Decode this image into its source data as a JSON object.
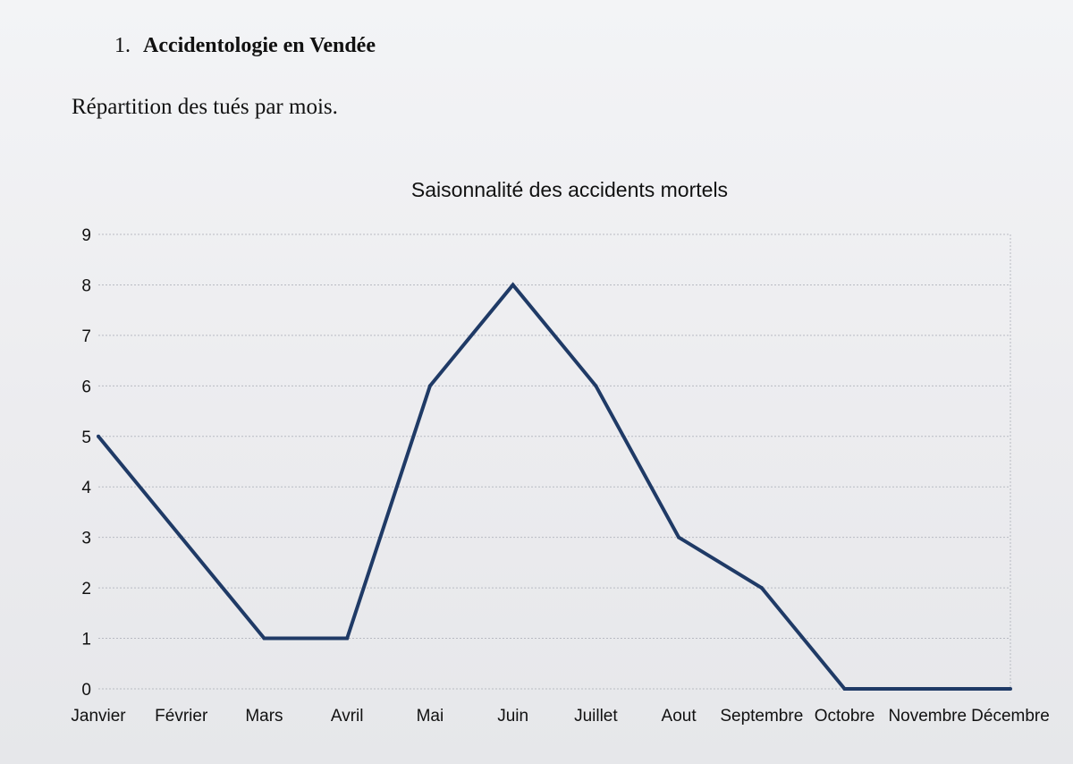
{
  "document": {
    "section_number": "1.",
    "section_title": "Accidentologie en Vendée",
    "subtitle": "Répartition des tués par mois."
  },
  "chart_data": {
    "type": "line",
    "title": "Saisonnalité des accidents mortels",
    "xlabel": "",
    "ylabel": "",
    "categories": [
      "Janvier",
      "Février",
      "Mars",
      "Avril",
      "Mai",
      "Juin",
      "Juillet",
      "Aout",
      "Septembre",
      "Octobre",
      "Novembre",
      "Décembre"
    ],
    "series": [
      {
        "values": [
          5,
          3,
          1,
          1,
          6,
          8,
          6,
          3,
          2,
          0,
          0,
          0
        ]
      }
    ],
    "ylim": [
      0,
      9
    ],
    "yticks": [
      0,
      1,
      2,
      3,
      4,
      5,
      6,
      7,
      8,
      9
    ],
    "grid": true,
    "legend": "none",
    "line_color": "#1f3a66"
  }
}
